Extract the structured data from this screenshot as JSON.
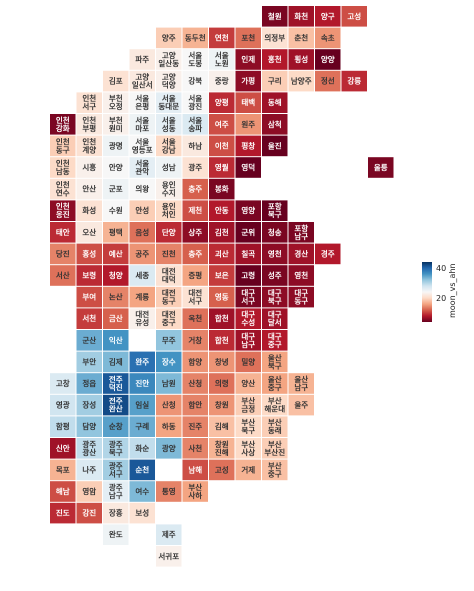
{
  "chart_data": {
    "type": "heatmap",
    "title": "",
    "colorbar": {
      "label": "moon_vs_ahn",
      "ticks": [
        20,
        40
      ],
      "range": [
        5,
        45
      ],
      "colormap": "RdBu"
    },
    "cells": [
      {
        "label": "철원",
        "col": 8,
        "row": 0,
        "value": 6
      },
      {
        "label": "화천",
        "col": 9,
        "row": 0,
        "value": 8
      },
      {
        "label": "양구",
        "col": 10,
        "row": 0,
        "value": 9
      },
      {
        "label": "고성",
        "col": 11,
        "row": 0,
        "value": 12
      },
      {
        "label": "양주",
        "col": 4,
        "row": 1,
        "value": 20
      },
      {
        "label": "동두천",
        "col": 5,
        "row": 1,
        "value": 18
      },
      {
        "label": "연천",
        "col": 6,
        "row": 1,
        "value": 11
      },
      {
        "label": "포천",
        "col": 7,
        "row": 1,
        "value": 14
      },
      {
        "label": "의정부",
        "col": 8,
        "row": 1,
        "value": 22
      },
      {
        "label": "춘천",
        "col": 9,
        "row": 1,
        "value": 19
      },
      {
        "label": "속초",
        "col": 10,
        "row": 1,
        "value": 16
      },
      {
        "label": "파주",
        "col": 3,
        "row": 2,
        "value": 23
      },
      {
        "label": "고양 일산동",
        "col": 4,
        "row": 2,
        "value": 24
      },
      {
        "label": "서울 도봉",
        "col": 5,
        "row": 2,
        "value": 25
      },
      {
        "label": "서울 노원",
        "col": 6,
        "row": 2,
        "value": 26
      },
      {
        "label": "인제",
        "col": 7,
        "row": 2,
        "value": 7
      },
      {
        "label": "홍천",
        "col": 8,
        "row": 2,
        "value": 9
      },
      {
        "label": "횡성",
        "col": 9,
        "row": 2,
        "value": 8
      },
      {
        "label": "양양",
        "col": 10,
        "row": 2,
        "value": 5
      },
      {
        "label": "김포",
        "col": 2,
        "row": 3,
        "value": 22
      },
      {
        "label": "고양 일산서",
        "col": 3,
        "row": 3,
        "value": 23
      },
      {
        "label": "고양 덕양",
        "col": 4,
        "row": 3,
        "value": 24
      },
      {
        "label": "강북",
        "col": 5,
        "row": 3,
        "value": 25
      },
      {
        "label": "중랑",
        "col": 6,
        "row": 3,
        "value": 24
      },
      {
        "label": "가평",
        "col": 7,
        "row": 3,
        "value": 7
      },
      {
        "label": "구리",
        "col": 8,
        "row": 3,
        "value": 20
      },
      {
        "label": "남양주",
        "col": 9,
        "row": 3,
        "value": 21
      },
      {
        "label": "정선",
        "col": 10,
        "row": 3,
        "value": 14
      },
      {
        "label": "강릉",
        "col": 11,
        "row": 3,
        "value": 10
      },
      {
        "label": "인천 서구",
        "col": 1,
        "row": 4,
        "value": 22
      },
      {
        "label": "부천 오정",
        "col": 2,
        "row": 4,
        "value": 24
      },
      {
        "label": "서울 은평",
        "col": 3,
        "row": 4,
        "value": 25
      },
      {
        "label": "서울 동대문",
        "col": 4,
        "row": 4,
        "value": 27
      },
      {
        "label": "서울 광진",
        "col": 5,
        "row": 4,
        "value": 25
      },
      {
        "label": "양평",
        "col": 6,
        "row": 4,
        "value": 10
      },
      {
        "label": "태백",
        "col": 7,
        "row": 4,
        "value": 12
      },
      {
        "label": "동해",
        "col": 8,
        "row": 4,
        "value": 8
      },
      {
        "label": "인천 강화",
        "col": 0,
        "row": 5,
        "value": 6
      },
      {
        "label": "인천 부평",
        "col": 1,
        "row": 5,
        "value": 23
      },
      {
        "label": "부천 원미",
        "col": 2,
        "row": 5,
        "value": 24
      },
      {
        "label": "서울 마포",
        "col": 3,
        "row": 5,
        "value": 26
      },
      {
        "label": "서울 성동",
        "col": 4,
        "row": 5,
        "value": 27
      },
      {
        "label": "서울 송파",
        "col": 5,
        "row": 5,
        "value": 28
      },
      {
        "label": "여주",
        "col": 6,
        "row": 5,
        "value": 12
      },
      {
        "label": "원주",
        "col": 7,
        "row": 5,
        "value": 16
      },
      {
        "label": "삼척",
        "col": 8,
        "row": 5,
        "value": 7
      },
      {
        "label": "인천 동구",
        "col": 0,
        "row": 6,
        "value": 20
      },
      {
        "label": "인천 계양",
        "col": 1,
        "row": 6,
        "value": 22
      },
      {
        "label": "광명",
        "col": 2,
        "row": 6,
        "value": 26
      },
      {
        "label": "서울 영등포",
        "col": 3,
        "row": 6,
        "value": 25
      },
      {
        "label": "서울 강남",
        "col": 4,
        "row": 6,
        "value": 21
      },
      {
        "label": "하남",
        "col": 5,
        "row": 6,
        "value": 23
      },
      {
        "label": "이천",
        "col": 6,
        "row": 6,
        "value": 12
      },
      {
        "label": "평창",
        "col": 7,
        "row": 6,
        "value": 9
      },
      {
        "label": "울진",
        "col": 8,
        "row": 6,
        "value": 5
      },
      {
        "label": "인천 남동",
        "col": 0,
        "row": 7,
        "value": 21
      },
      {
        "label": "시흥",
        "col": 1,
        "row": 7,
        "value": 24
      },
      {
        "label": "안양",
        "col": 2,
        "row": 7,
        "value": 25
      },
      {
        "label": "서울 관악",
        "col": 3,
        "row": 7,
        "value": 27
      },
      {
        "label": "성남",
        "col": 4,
        "row": 7,
        "value": 26
      },
      {
        "label": "광주",
        "col": 5,
        "row": 7,
        "value": 22
      },
      {
        "label": "영월",
        "col": 6,
        "row": 7,
        "value": 10
      },
      {
        "label": "영덕",
        "col": 7,
        "row": 7,
        "value": 4
      },
      {
        "label": "인천 연수",
        "col": 0,
        "row": 8,
        "value": 22
      },
      {
        "label": "안산",
        "col": 1,
        "row": 8,
        "value": 24
      },
      {
        "label": "군포",
        "col": 2,
        "row": 8,
        "value": 26
      },
      {
        "label": "의왕",
        "col": 3,
        "row": 8,
        "value": 25
      },
      {
        "label": "용인 수지",
        "col": 4,
        "row": 8,
        "value": 24
      },
      {
        "label": "충주",
        "col": 5,
        "row": 8,
        "value": 13
      },
      {
        "label": "봉화",
        "col": 6,
        "row": 8,
        "value": 6
      },
      {
        "label": "울릉",
        "col": 12,
        "row": 7,
        "value": 6
      },
      {
        "label": "인천 옹진",
        "col": 0,
        "row": 9,
        "value": 7
      },
      {
        "label": "화성",
        "col": 1,
        "row": 9,
        "value": 22
      },
      {
        "label": "수원",
        "col": 2,
        "row": 9,
        "value": 25
      },
      {
        "label": "안성",
        "col": 3,
        "row": 9,
        "value": 20
      },
      {
        "label": "용인 처인",
        "col": 4,
        "row": 9,
        "value": 21
      },
      {
        "label": "제천",
        "col": 5,
        "row": 9,
        "value": 12
      },
      {
        "label": "안동",
        "col": 6,
        "row": 9,
        "value": 9
      },
      {
        "label": "영양",
        "col": 7,
        "row": 9,
        "value": 6
      },
      {
        "label": "포항 북구",
        "col": 8,
        "row": 9,
        "value": 5
      },
      {
        "label": "태안",
        "col": 0,
        "row": 10,
        "value": 10
      },
      {
        "label": "오산",
        "col": 1,
        "row": 10,
        "value": 23
      },
      {
        "label": "평택",
        "col": 2,
        "row": 10,
        "value": 18
      },
      {
        "label": "음성",
        "col": 3,
        "row": 10,
        "value": 14
      },
      {
        "label": "단양",
        "col": 4,
        "row": 10,
        "value": 10
      },
      {
        "label": "상주",
        "col": 5,
        "row": 10,
        "value": 7
      },
      {
        "label": "김천",
        "col": 6,
        "row": 10,
        "value": 8
      },
      {
        "label": "군위",
        "col": 7,
        "row": 10,
        "value": 5
      },
      {
        "label": "청송",
        "col": 8,
        "row": 10,
        "value": 6
      },
      {
        "label": "포항 남구",
        "col": 9,
        "row": 10,
        "value": 6
      },
      {
        "label": "당진",
        "col": 0,
        "row": 11,
        "value": 15
      },
      {
        "label": "홍성",
        "col": 1,
        "row": 11,
        "value": 12
      },
      {
        "label": "예산",
        "col": 2,
        "row": 11,
        "value": 11
      },
      {
        "label": "공주",
        "col": 3,
        "row": 11,
        "value": 16
      },
      {
        "label": "진천",
        "col": 4,
        "row": 11,
        "value": 15
      },
      {
        "label": "충주",
        "col": 5,
        "row": 11,
        "value": 13
      },
      {
        "label": "괴산",
        "col": 6,
        "row": 11,
        "value": 10
      },
      {
        "label": "칠곡",
        "col": 7,
        "row": 11,
        "value": 8
      },
      {
        "label": "영천",
        "col": 8,
        "row": 11,
        "value": 7
      },
      {
        "label": "경산",
        "col": 9,
        "row": 11,
        "value": 8
      },
      {
        "label": "경주",
        "col": 10,
        "row": 11,
        "value": 9
      },
      {
        "label": "서산",
        "col": 0,
        "row": 12,
        "value": 14
      },
      {
        "label": "보령",
        "col": 1,
        "row": 12,
        "value": 10
      },
      {
        "label": "청양",
        "col": 2,
        "row": 12,
        "value": 9
      },
      {
        "label": "세종",
        "col": 3,
        "row": 12,
        "value": 28
      },
      {
        "label": "대전 대덕",
        "col": 4,
        "row": 12,
        "value": 22
      },
      {
        "label": "증평",
        "col": 5,
        "row": 12,
        "value": 17
      },
      {
        "label": "보은",
        "col": 6,
        "row": 12,
        "value": 11
      },
      {
        "label": "고령",
        "col": 7,
        "row": 12,
        "value": 5
      },
      {
        "label": "성주",
        "col": 8,
        "row": 12,
        "value": 6
      },
      {
        "label": "영천",
        "col": 9,
        "row": 12,
        "value": 7
      },
      {
        "label": "부여",
        "col": 1,
        "row": 13,
        "value": 12
      },
      {
        "label": "논산",
        "col": 2,
        "row": 13,
        "value": 15
      },
      {
        "label": "계룡",
        "col": 3,
        "row": 13,
        "value": 17
      },
      {
        "label": "대전 동구",
        "col": 4,
        "row": 13,
        "value": 20
      },
      {
        "label": "대전 서구",
        "col": 5,
        "row": 13,
        "value": 22
      },
      {
        "label": "영동",
        "col": 6,
        "row": 13,
        "value": 13
      },
      {
        "label": "대구 서구",
        "col": 7,
        "row": 13,
        "value": 6
      },
      {
        "label": "대구 북구",
        "col": 8,
        "row": 13,
        "value": 7
      },
      {
        "label": "대구 동구",
        "col": 9,
        "row": 13,
        "value": 7
      },
      {
        "label": "서천",
        "col": 1,
        "row": 14,
        "value": 11
      },
      {
        "label": "금산",
        "col": 2,
        "row": 14,
        "value": 13
      },
      {
        "label": "대전 유성",
        "col": 3,
        "row": 14,
        "value": 24
      },
      {
        "label": "대전 중구",
        "col": 4,
        "row": 14,
        "value": 21
      },
      {
        "label": "옥천",
        "col": 5,
        "row": 14,
        "value": 14
      },
      {
        "label": "합천",
        "col": 6,
        "row": 14,
        "value": 8
      },
      {
        "label": "대구 수성",
        "col": 7,
        "row": 14,
        "value": 9
      },
      {
        "label": "대구 달서",
        "col": 8,
        "row": 14,
        "value": 8
      },
      {
        "label": "군산",
        "col": 1,
        "row": 15,
        "value": 35
      },
      {
        "label": "익산",
        "col": 2,
        "row": 15,
        "value": 37
      },
      {
        "label": "무주",
        "col": 4,
        "row": 15,
        "value": 33
      },
      {
        "label": "거창",
        "col": 5,
        "row": 15,
        "value": 15
      },
      {
        "label": "합천",
        "col": 6,
        "row": 15,
        "value": 10
      },
      {
        "label": "대구 남구",
        "col": 7,
        "row": 15,
        "value": 8
      },
      {
        "label": "대구 중구",
        "col": 8,
        "row": 15,
        "value": 9
      },
      {
        "label": "부안",
        "col": 1,
        "row": 16,
        "value": 32
      },
      {
        "label": "김제",
        "col": 2,
        "row": 16,
        "value": 34
      },
      {
        "label": "완주",
        "col": 3,
        "row": 16,
        "value": 40
      },
      {
        "label": "장수",
        "col": 4,
        "row": 16,
        "value": 37
      },
      {
        "label": "함양",
        "col": 5,
        "row": 16,
        "value": 16
      },
      {
        "label": "창녕",
        "col": 6,
        "row": 16,
        "value": 16
      },
      {
        "label": "밀양",
        "col": 7,
        "row": 16,
        "value": 14
      },
      {
        "label": "울산 북구",
        "col": 8,
        "row": 16,
        "value": 17
      },
      {
        "label": "고창",
        "col": 0,
        "row": 17,
        "value": 28
      },
      {
        "label": "정읍",
        "col": 1,
        "row": 17,
        "value": 35
      },
      {
        "label": "전주 덕진",
        "col": 2,
        "row": 17,
        "value": 42
      },
      {
        "label": "진안",
        "col": 3,
        "row": 17,
        "value": 38
      },
      {
        "label": "남원",
        "col": 4,
        "row": 17,
        "value": 34
      },
      {
        "label": "산청",
        "col": 5,
        "row": 17,
        "value": 15
      },
      {
        "label": "의령",
        "col": 6,
        "row": 17,
        "value": 14
      },
      {
        "label": "양산",
        "col": 7,
        "row": 17,
        "value": 18
      },
      {
        "label": "울산 중구",
        "col": 8,
        "row": 17,
        "value": 17
      },
      {
        "label": "울산 남구",
        "col": 9,
        "row": 17,
        "value": 18
      },
      {
        "label": "영광",
        "col": 0,
        "row": 18,
        "value": 29
      },
      {
        "label": "장성",
        "col": 1,
        "row": 18,
        "value": 32
      },
      {
        "label": "전주 완산",
        "col": 2,
        "row": 18,
        "value": 43
      },
      {
        "label": "임실",
        "col": 3,
        "row": 18,
        "value": 36
      },
      {
        "label": "산청",
        "col": 4,
        "row": 18,
        "value": 16
      },
      {
        "label": "함안",
        "col": 5,
        "row": 18,
        "value": 15
      },
      {
        "label": "창원",
        "col": 6,
        "row": 18,
        "value": 16
      },
      {
        "label": "부산 금정",
        "col": 7,
        "row": 18,
        "value": 20
      },
      {
        "label": "부산 해운대",
        "col": 8,
        "row": 18,
        "value": 21
      },
      {
        "label": "울주",
        "col": 9,
        "row": 18,
        "value": 19
      },
      {
        "label": "함평",
        "col": 0,
        "row": 19,
        "value": 30
      },
      {
        "label": "담양",
        "col": 1,
        "row": 19,
        "value": 33
      },
      {
        "label": "순창",
        "col": 2,
        "row": 19,
        "value": 36
      },
      {
        "label": "구례",
        "col": 3,
        "row": 19,
        "value": 35
      },
      {
        "label": "하동",
        "col": 4,
        "row": 19,
        "value": 17
      },
      {
        "label": "진주",
        "col": 5,
        "row": 19,
        "value": 15
      },
      {
        "label": "김해",
        "col": 6,
        "row": 19,
        "value": 19
      },
      {
        "label": "부산 북구",
        "col": 7,
        "row": 19,
        "value": 21
      },
      {
        "label": "부산 동래",
        "col": 8,
        "row": 19,
        "value": 20
      },
      {
        "label": "신안",
        "col": 0,
        "row": 20,
        "value": 8
      },
      {
        "label": "광주 광산",
        "col": 1,
        "row": 20,
        "value": 30
      },
      {
        "label": "광주 북구",
        "col": 2,
        "row": 20,
        "value": 31
      },
      {
        "label": "화순",
        "col": 3,
        "row": 20,
        "value": 30
      },
      {
        "label": "광양",
        "col": 4,
        "row": 20,
        "value": 34
      },
      {
        "label": "사천",
        "col": 5,
        "row": 20,
        "value": 15
      },
      {
        "label": "창원 진해",
        "col": 6,
        "row": 20,
        "value": 18
      },
      {
        "label": "부산 사상",
        "col": 7,
        "row": 20,
        "value": 21
      },
      {
        "label": "부산 부산진",
        "col": 8,
        "row": 20,
        "value": 20
      },
      {
        "label": "목포",
        "col": 0,
        "row": 21,
        "value": 18
      },
      {
        "label": "나주",
        "col": 1,
        "row": 21,
        "value": 28
      },
      {
        "label": "광주 서구",
        "col": 2,
        "row": 21,
        "value": 32
      },
      {
        "label": "순천",
        "col": 3,
        "row": 21,
        "value": 42
      },
      {
        "label": "남해",
        "col": 5,
        "row": 21,
        "value": 12
      },
      {
        "label": "고성",
        "col": 6,
        "row": 21,
        "value": 14
      },
      {
        "label": "거제",
        "col": 7,
        "row": 21,
        "value": 18
      },
      {
        "label": "부산 중구",
        "col": 8,
        "row": 21,
        "value": 19
      },
      {
        "label": "해남",
        "col": 0,
        "row": 22,
        "value": 12
      },
      {
        "label": "영암",
        "col": 1,
        "row": 22,
        "value": 20
      },
      {
        "label": "광주 남구",
        "col": 2,
        "row": 22,
        "value": 27
      },
      {
        "label": "여수",
        "col": 3,
        "row": 22,
        "value": 34
      },
      {
        "label": "통영",
        "col": 4,
        "row": 22,
        "value": 15
      },
      {
        "label": "부산 사하",
        "col": 5,
        "row": 22,
        "value": 17
      },
      {
        "label": "진도",
        "col": 0,
        "row": 23,
        "value": 10
      },
      {
        "label": "강진",
        "col": 1,
        "row": 23,
        "value": 12
      },
      {
        "label": "장흥",
        "col": 2,
        "row": 23,
        "value": 23
      },
      {
        "label": "보성",
        "col": 3,
        "row": 23,
        "value": 22
      },
      {
        "label": "완도",
        "col": 2,
        "row": 24,
        "value": 26
      },
      {
        "label": "제주",
        "col": 4,
        "row": 24,
        "value": 28
      },
      {
        "label": "서귀포",
        "col": 4,
        "row": 25,
        "value": 24
      }
    ]
  }
}
